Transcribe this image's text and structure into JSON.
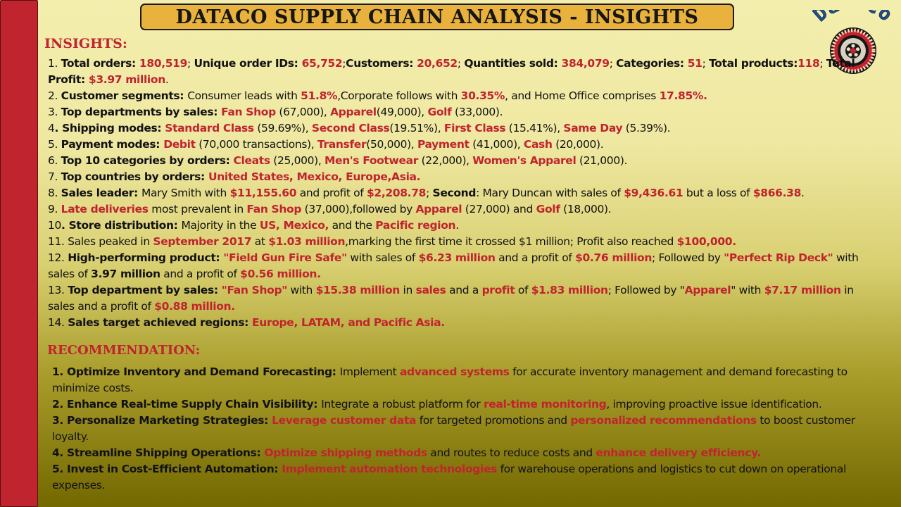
{
  "title": "DATACO  SUPPLY CHAIN  ANALYSIS  - INSIGHTS",
  "logo_text": "DataCo",
  "colors": {
    "accent_red": "#c0242e",
    "title_bar": "#e8b23c",
    "sidebar": "#c0242e"
  },
  "insights": {
    "heading": "INSIGHTS:",
    "items": [
      [
        [
          "n",
          "1. "
        ],
        [
          "b",
          "Total orders: "
        ],
        [
          "r",
          "180,519"
        ],
        [
          "n",
          "; "
        ],
        [
          "b",
          "Unique order IDs: "
        ],
        [
          "r",
          "65,752"
        ],
        [
          "n",
          ";"
        ],
        [
          "b",
          "Customers: "
        ],
        [
          "r",
          "20,652"
        ],
        [
          "n",
          "; "
        ],
        [
          "b",
          "Quantities sold: "
        ],
        [
          "r",
          "384,079"
        ],
        [
          "n",
          "; "
        ],
        [
          "b",
          "Categories: "
        ],
        [
          "r",
          "51"
        ],
        [
          "n",
          "; "
        ],
        [
          "b",
          "Total products:"
        ],
        [
          "r",
          "118"
        ],
        [
          "n",
          "; "
        ],
        [
          "b",
          "Total Profit: "
        ],
        [
          "r",
          "$3.97 million"
        ],
        [
          "n",
          "."
        ]
      ],
      [
        [
          "n",
          "2. "
        ],
        [
          "b",
          "Customer segments: "
        ],
        [
          "n",
          "Consumer leads with "
        ],
        [
          "r",
          "51.8%"
        ],
        [
          "n",
          ",Corporate follows with "
        ],
        [
          "r",
          "30.35%"
        ],
        [
          "n",
          ", and Home Office comprises "
        ],
        [
          "r",
          "17.85%."
        ]
      ],
      [
        [
          "n",
          "3. "
        ],
        [
          "b",
          "Top departments by sales: "
        ],
        [
          "r",
          "Fan Shop"
        ],
        [
          "n",
          " (67,000), "
        ],
        [
          "r",
          "Apparel"
        ],
        [
          "n",
          "(49,000), "
        ],
        [
          "r",
          "Golf"
        ],
        [
          "n",
          " (33,000)."
        ]
      ],
      [
        [
          "n",
          "4"
        ],
        [
          "b",
          ". Shipping modes: "
        ],
        [
          "r",
          "Standard Class"
        ],
        [
          "n",
          " (59.69%), "
        ],
        [
          "r",
          "Second Class"
        ],
        [
          "n",
          "(19.51%), "
        ],
        [
          "r",
          "First Class"
        ],
        [
          "n",
          " (15.41%), "
        ],
        [
          "r",
          "Same Day"
        ],
        [
          "n",
          " (5.39%)."
        ]
      ],
      [
        [
          "n",
          "5. "
        ],
        [
          "b",
          "Payment modes: "
        ],
        [
          "r",
          "Debit"
        ],
        [
          "n",
          " (70,000 transactions), "
        ],
        [
          "r",
          "Transfer"
        ],
        [
          "n",
          "(50,000), "
        ],
        [
          "r",
          "Payment"
        ],
        [
          "n",
          " (41,000), "
        ],
        [
          "r",
          "Cash"
        ],
        [
          "n",
          " (20,000)."
        ]
      ],
      [
        [
          "n",
          "6. "
        ],
        [
          "b",
          "Top 10 categories by orders: "
        ],
        [
          "r",
          "Cleats"
        ],
        [
          "n",
          " (25,000), "
        ],
        [
          "r",
          "Men's Footwear"
        ],
        [
          "n",
          " (22,000), "
        ],
        [
          "r",
          "Women's Apparel"
        ],
        [
          "n",
          " (21,000)."
        ]
      ],
      [
        [
          "n",
          "7. "
        ],
        [
          "b",
          "Top countries by orders: "
        ],
        [
          "r",
          "United States, Mexico, Europe,Asia."
        ]
      ],
      [
        [
          "n",
          "8. "
        ],
        [
          "b",
          "Sales leader: "
        ],
        [
          "n",
          "Mary Smith with "
        ],
        [
          "r",
          "$11,155.60"
        ],
        [
          "n",
          " and profit of "
        ],
        [
          "r",
          "$2,208.78"
        ],
        [
          "n",
          "; "
        ],
        [
          "b",
          "Second"
        ],
        [
          "n",
          ": Mary Duncan with sales of "
        ],
        [
          "r",
          "$9,436.61"
        ],
        [
          "n",
          " but a loss of "
        ],
        [
          "r",
          "$866.38"
        ],
        [
          "n",
          "."
        ]
      ],
      [
        [
          "n",
          "9. "
        ],
        [
          "r",
          "Late deliveries"
        ],
        [
          "n",
          " most prevalent in "
        ],
        [
          "r",
          "Fan Shop"
        ],
        [
          "n",
          " (37,000),followed by "
        ],
        [
          "r",
          "Apparel"
        ],
        [
          "n",
          " (27,000) and "
        ],
        [
          "r",
          "Golf"
        ],
        [
          "n",
          " (18,000)."
        ]
      ],
      [
        [
          "n",
          "10"
        ],
        [
          "b",
          ". Store distribution: "
        ],
        [
          "n",
          "Majority in the "
        ],
        [
          "r",
          "US, Mexico,"
        ],
        [
          "n",
          " and the "
        ],
        [
          "r",
          "Pacific region"
        ],
        [
          "n",
          "."
        ]
      ],
      [
        [
          "n",
          "11. Sales peaked in "
        ],
        [
          "r",
          "September 2017"
        ],
        [
          "n",
          " at "
        ],
        [
          "r",
          "$1.03 million"
        ],
        [
          "n",
          ",marking the first time it crossed $1 million; Profit also reached "
        ],
        [
          "r",
          "$100,000."
        ]
      ],
      [
        [
          "n",
          "12. "
        ],
        [
          "b",
          "High-performing product: "
        ],
        [
          "r",
          "\"Field Gun Fire Safe\""
        ],
        [
          "n",
          " with sales of "
        ],
        [
          "r",
          "$6.23 million"
        ],
        [
          "n",
          " and a profit of "
        ],
        [
          "r",
          "$0.76 million"
        ],
        [
          "n",
          "; Followed by "
        ],
        [
          "r",
          "\"Perfect Rip Deck\""
        ],
        [
          "n",
          " with sales of  "
        ],
        [
          "b",
          "3.97 million"
        ],
        [
          "n",
          " and a profit of "
        ],
        [
          "r",
          "$0.56 million."
        ]
      ],
      [
        [
          "n",
          "13. "
        ],
        [
          "b",
          "Top department by sales: "
        ],
        [
          "r",
          "\"Fan Shop\""
        ],
        [
          "n",
          " with "
        ],
        [
          "r",
          "$15.38 million"
        ],
        [
          "n",
          " in "
        ],
        [
          "r",
          "sales"
        ],
        [
          "n",
          " and a "
        ],
        [
          "r",
          "profit"
        ],
        [
          "n",
          " of "
        ],
        [
          "r",
          "$1.83 million"
        ],
        [
          "n",
          "; Followed by \""
        ],
        [
          "r",
          "Apparel"
        ],
        [
          "n",
          "\" with "
        ],
        [
          "r",
          "$7.17 million"
        ],
        [
          "n",
          " in sales and a profit of "
        ],
        [
          "r",
          "$0.88 million."
        ]
      ],
      [
        [
          "n",
          "14. "
        ],
        [
          "b",
          "Sales target achieved regions: "
        ],
        [
          "r",
          "Europe, LATAM, and Pacific Asia."
        ]
      ]
    ]
  },
  "recommendation": {
    "heading": "RECOMMENDATION:",
    "items": [
      [
        [
          "b",
          "1. Optimize Inventory and Demand Forecasting: "
        ],
        [
          "n",
          "Implement "
        ],
        [
          "r",
          "advanced systems"
        ],
        [
          "n",
          " for accurate inventory management and demand forecasting to minimize costs."
        ]
      ],
      [
        [
          "b",
          "2. Enhance Real-time Supply Chain Visibility: "
        ],
        [
          "n",
          "Integrate a robust platform for "
        ],
        [
          "r",
          "real-time monitoring"
        ],
        [
          "n",
          ", improving proactive issue identification."
        ]
      ],
      [
        [
          "b",
          "3. Personalize Marketing Strategies: "
        ],
        [
          "r",
          "Leverage customer data"
        ],
        [
          "n",
          " for targeted promotions and "
        ],
        [
          "r",
          "personalized recommendations"
        ],
        [
          "n",
          " to boost customer loyalty."
        ]
      ],
      [
        [
          "b",
          "4. Streamline Shipping Operations: "
        ],
        [
          "r",
          "Optimize shipping methods"
        ],
        [
          "n",
          " and routes to reduce costs and "
        ],
        [
          "r",
          "enhance delivery efficiency."
        ]
      ],
      [
        [
          "b",
          "5. Invest in Cost-Efficient Automation: "
        ],
        [
          "r",
          "Implement automation technologies"
        ],
        [
          "n",
          " for warehouse operations and logistics to cut down on operational expenses."
        ]
      ]
    ]
  }
}
